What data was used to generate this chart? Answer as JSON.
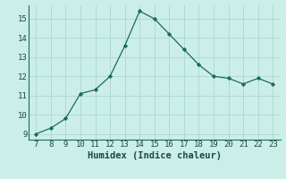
{
  "x": [
    7,
    8,
    9,
    10,
    11,
    12,
    13,
    14,
    15,
    16,
    17,
    18,
    19,
    20,
    21,
    22,
    23
  ],
  "y": [
    9.0,
    9.3,
    9.8,
    11.1,
    11.3,
    12.0,
    13.6,
    15.4,
    15.0,
    14.2,
    13.4,
    12.6,
    12.0,
    11.9,
    11.6,
    11.9,
    11.6
  ],
  "line_color": "#1a6b5e",
  "marker_color": "#1a6b5e",
  "bg_color": "#cceee8",
  "grid_color": "#aad8d0",
  "xlabel": "Humidex (Indice chaleur)",
  "xlim_min": 6.5,
  "xlim_max": 23.5,
  "ylim_min": 8.7,
  "ylim_max": 15.7,
  "xticks": [
    7,
    8,
    9,
    10,
    11,
    12,
    13,
    14,
    15,
    16,
    17,
    18,
    19,
    20,
    21,
    22,
    23
  ],
  "yticks": [
    9,
    10,
    11,
    12,
    13,
    14,
    15
  ],
  "xlabel_fontsize": 7.5,
  "tick_fontsize": 6.5
}
